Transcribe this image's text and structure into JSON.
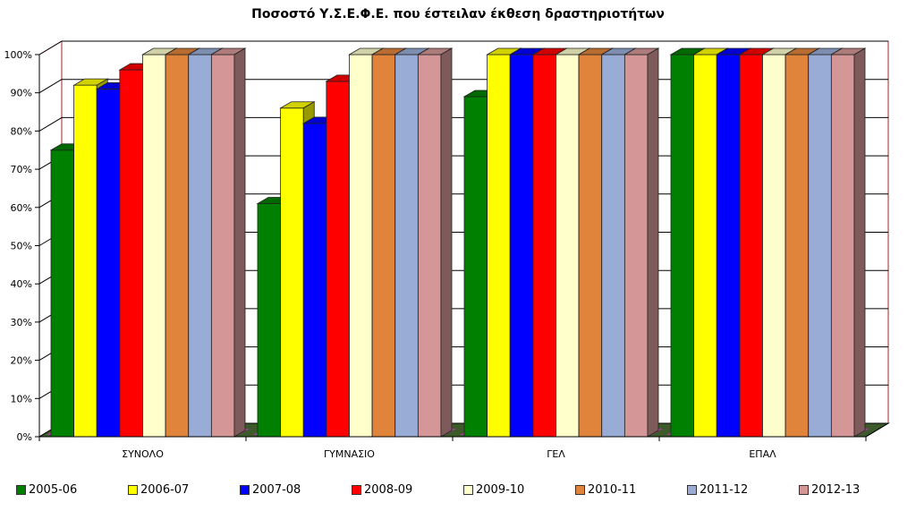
{
  "chart_data": {
    "type": "bar",
    "title": "Ποσοστό Υ.Σ.Ε.Φ.Ε. που έστειλαν έκθεση δραστηριοτήτων",
    "categories": [
      "ΣΥΝΟΛΟ",
      "ΓΥΜΝΑΣΙΟ",
      "ΓΕΛ",
      "ΕΠΑΛ"
    ],
    "series": [
      {
        "name": "2005-06",
        "color": "#008000",
        "values": [
          75,
          61,
          89,
          100
        ]
      },
      {
        "name": "2006-07",
        "color": "#ffff00",
        "values": [
          92,
          86,
          100,
          100
        ]
      },
      {
        "name": "2007-08",
        "color": "#0000ff",
        "values": [
          91,
          82,
          100,
          100
        ]
      },
      {
        "name": "2008-09",
        "color": "#ff0000",
        "values": [
          96,
          93,
          100,
          100
        ]
      },
      {
        "name": "2009-10",
        "color": "#ffffcc",
        "values": [
          100,
          100,
          100,
          100
        ]
      },
      {
        "name": "2010-11",
        "color": "#e0843c",
        "values": [
          100,
          100,
          100,
          100
        ]
      },
      {
        "name": "2011-12",
        "color": "#99acd6",
        "values": [
          100,
          100,
          100,
          100
        ]
      },
      {
        "name": "2012-13",
        "color": "#d49696",
        "values": [
          100,
          100,
          100,
          100
        ]
      }
    ],
    "yticks": [
      "0%",
      "10%",
      "20%",
      "30%",
      "40%",
      "50%",
      "60%",
      "70%",
      "80%",
      "90%",
      "100%"
    ],
    "ylim": [
      0,
      100
    ],
    "grid": true,
    "legend_position": "bottom",
    "xlabel": "",
    "ylabel": ""
  }
}
